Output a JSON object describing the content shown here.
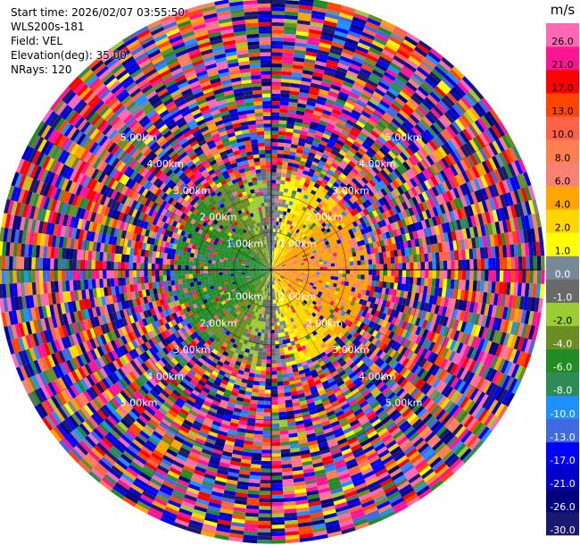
{
  "header": {
    "start_time": "Start time: 2026/02/07 03:55:50",
    "instrument": "WLS200s-181",
    "field": "Field: VEL",
    "elevation": "Elevation(deg): 35.00",
    "nrays": "NRays: 120"
  },
  "chart_data": {
    "type": "heatmap",
    "subtype": "polar-ppi-scan",
    "field": "VEL",
    "units": "m/s",
    "elevation_deg": 35.0,
    "nrays": 120,
    "range_rings_km": [
      1.0,
      2.0,
      3.0,
      4.0,
      5.0
    ],
    "range_ring_labels": [
      "1.00km",
      "2.00km",
      "3.00km",
      "4.00km",
      "5.00km"
    ],
    "max_range_km": 7.2,
    "gate_km": 0.1,
    "azimuth_spokes_deg": [
      0,
      30,
      60,
      90,
      120,
      150,
      180,
      210,
      240,
      270,
      300,
      330
    ],
    "near_field_pattern": "approaching (negative, greens/blues) toward west, receding (positive, yellow/orange) toward east within ~2.5 km; noise beyond",
    "colorbar": {
      "label": "m/s",
      "boundaries": [
        -30.0,
        -26.0,
        -21.0,
        -17.0,
        -13.0,
        -10.0,
        -8.0,
        -6.0,
        -4.0,
        -2.0,
        -1.0,
        0.0,
        1.0,
        2.0,
        4.0,
        6.0,
        8.0,
        10.0,
        13.0,
        17.0,
        21.0,
        26.0,
        30.0
      ],
      "tick_labels": [
        "-30.0",
        "-26.0",
        "-21.0",
        "-17.0",
        "-13.0",
        "-10.0",
        "-8.0",
        "-6.0",
        "-4.0",
        "-2.0",
        "-1.0",
        "0.0",
        "1.0",
        "2.0",
        "4.0",
        "6.0",
        "8.0",
        "10.0",
        "13.0",
        "17.0",
        "21.0",
        "26.0"
      ],
      "colors": [
        "#191970",
        "#000080",
        "#0000CD",
        "#0000FF",
        "#4169E1",
        "#1E90FF",
        "#2E8B57",
        "#228B22",
        "#6B8E23",
        "#9ACD32",
        "#696969",
        "#778899",
        "#FFFF00",
        "#FFD700",
        "#FFA500",
        "#FA8072",
        "#FF7F50",
        "#FF6347",
        "#FF4500",
        "#FF0000",
        "#FF1493",
        "#FF69B4"
      ]
    }
  }
}
